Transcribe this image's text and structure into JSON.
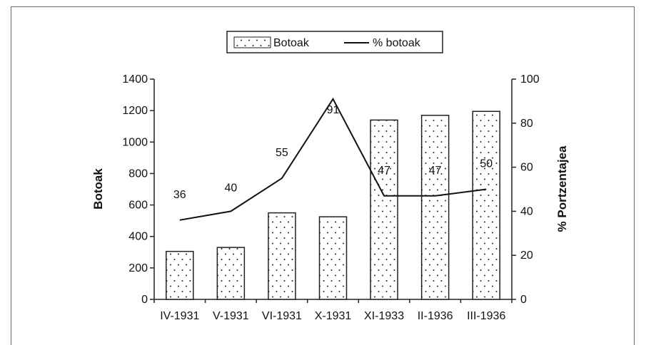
{
  "chart_data": {
    "type": "bar",
    "categories": [
      "IV-1931",
      "V-1931",
      "VI-1931",
      "X-1931",
      "XI-1933",
      "II-1936",
      "III-1936"
    ],
    "series": [
      {
        "name": "Botoak",
        "type": "bar",
        "axis": "left",
        "values": [
          305,
          330,
          550,
          525,
          1140,
          1170,
          1195
        ]
      },
      {
        "name": "% botoak",
        "type": "line",
        "axis": "right",
        "values": [
          36,
          40,
          55,
          91,
          47,
          47,
          50
        ],
        "labels": [
          "36",
          "40",
          "55",
          "91",
          "47",
          "47",
          "50"
        ]
      }
    ],
    "ylabel": "Botoak",
    "y2label": "% Portzentajea",
    "ylim": [
      0,
      1400
    ],
    "y2lim": [
      0,
      100
    ],
    "yticks": [
      "0",
      "200",
      "400",
      "600",
      "800",
      "1000",
      "1200",
      "1400"
    ],
    "y2ticks": [
      "0",
      "20",
      "40",
      "60",
      "80",
      "100"
    ],
    "legend_position": "top-center",
    "grid": false
  },
  "colors": {
    "bar_fill": "#ffffff",
    "dots": "#222222",
    "line": "#111111",
    "axis": "#222222"
  }
}
